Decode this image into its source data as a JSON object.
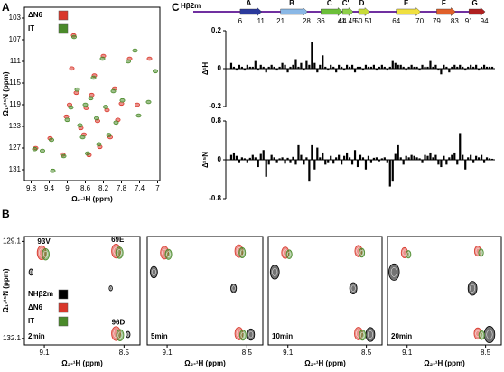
{
  "panel_labels": [
    "A",
    "B",
    "C"
  ],
  "secondary_structure": {
    "label": "Hβ2m",
    "line_color": "#7030a0",
    "strands": [
      {
        "name": "A",
        "start": 6,
        "end": 11,
        "color": "#2b3a9c"
      },
      {
        "name": "B",
        "start": 21,
        "end": 28,
        "color": "#8ab8e6"
      },
      {
        "name": "C",
        "start": 36,
        "end": 41,
        "color": "#6cbf3a"
      },
      {
        "name": "C'",
        "start": 44,
        "end": 45,
        "color": "#8fd04a"
      },
      {
        "name": "D",
        "start": 50,
        "end": 51,
        "color": "#c8dc3a"
      },
      {
        "name": "E",
        "start": 64,
        "end": 70,
        "color": "#f0e040"
      },
      {
        "name": "F",
        "start": 79,
        "end": 83,
        "color": "#e0602a"
      },
      {
        "name": "G",
        "start": 91,
        "end": 94,
        "color": "#b02020"
      }
    ]
  },
  "chart_data": [
    {
      "type": "scatter",
      "xlabel": "Ω₂-¹H (ppm)",
      "ylabel": "Ω₁-¹⁵N (ppm)",
      "legend": "upper left",
      "xlim": [
        9.95,
        6.95
      ],
      "ylim": [
        133,
        101
      ],
      "xticks": [
        9.8,
        9.4,
        9.0,
        8.6,
        8.2,
        7.8,
        7.4,
        7.0
      ],
      "yticks": [
        103,
        107,
        111,
        115,
        119,
        123,
        127,
        131
      ],
      "series": [
        {
          "name": "ΔN6",
          "color": "#d9372b",
          "x": [
            9.7,
            9.38,
            9.1,
            9.02,
            8.95,
            8.86,
            8.8,
            8.7,
            8.63,
            8.58,
            8.52,
            8.46,
            8.4,
            8.33,
            8.28,
            8.2,
            8.12,
            8.05,
            7.95,
            7.88,
            7.8,
            7.62,
            7.45,
            7.18,
            8.9
          ],
          "y": [
            127.0,
            125.2,
            128.2,
            121.2,
            119.0,
            106.2,
            116.8,
            123.3,
            124.5,
            119.6,
            128.3,
            117.2,
            113.6,
            122.0,
            126.8,
            110.0,
            120.0,
            125.0,
            116.0,
            121.8,
            118.8,
            110.5,
            119.0,
            110.5,
            112.3
          ]
        },
        {
          "name": "IT",
          "color": "#4a8a2a",
          "x": [
            9.72,
            9.35,
            9.32,
            9.08,
            9.0,
            8.92,
            8.85,
            8.78,
            8.72,
            8.66,
            8.6,
            8.55,
            8.48,
            8.42,
            8.35,
            8.3,
            8.22,
            8.15,
            8.08,
            7.98,
            7.92,
            7.78,
            7.65,
            7.5,
            7.42,
            7.2,
            7.05,
            9.55
          ],
          "y": [
            127.2,
            125.5,
            131.2,
            128.5,
            121.8,
            119.5,
            106.5,
            116.2,
            122.8,
            125.0,
            119.0,
            128.0,
            117.8,
            114.0,
            121.5,
            126.3,
            110.5,
            119.4,
            124.6,
            116.5,
            122.3,
            118.2,
            111.0,
            109.0,
            121.0,
            118.5,
            112.8,
            127.5
          ]
        }
      ]
    },
    {
      "type": "scatter",
      "title": "2min",
      "xlabel": "Ω₂-¹H (ppm)",
      "ylabel": "Ω₁-¹⁵N (ppm)",
      "legend": "left",
      "peak_labels": [
        "93V",
        "69E",
        "96D"
      ],
      "xlim": [
        9.25,
        8.38
      ],
      "ylim": [
        132.3,
        128.95
      ],
      "xticks": [
        9.1,
        8.5
      ],
      "yticks": [
        129.1,
        132.1
      ],
      "series": [
        {
          "name": "NHβ2m",
          "color": "#000000",
          "x": [
            9.2,
            8.6,
            8.47
          ],
          "y": [
            130.05,
            130.55,
            131.98
          ],
          "sizes": [
            0.5,
            0.4,
            0.5
          ]
        },
        {
          "name": "ΔN6",
          "color": "#d9372b",
          "x": [
            9.12,
            8.56,
            8.56
          ],
          "y": [
            129.45,
            129.4,
            131.95
          ],
          "sizes": [
            1.1,
            1.1,
            1.1
          ]
        },
        {
          "name": "IT",
          "color": "#4a8a2a",
          "x": [
            9.09,
            8.535,
            8.53
          ],
          "y": [
            129.5,
            129.45,
            132.0
          ],
          "sizes": [
            0.9,
            0.9,
            0.9
          ]
        }
      ]
    },
    {
      "type": "scatter",
      "title": "5min",
      "xlabel": "Ω₂-¹H (ppm)",
      "xlim": [
        9.25,
        8.38
      ],
      "ylim": [
        132.3,
        128.95
      ],
      "xticks": [
        9.1,
        8.5
      ],
      "series": [
        {
          "name": "NHβ2m",
          "color": "#000000",
          "x": [
            9.2,
            8.6,
            8.47
          ],
          "y": [
            130.05,
            130.55,
            131.98
          ],
          "sizes": [
            0.9,
            0.7,
            0.9
          ]
        },
        {
          "name": "ΔN6",
          "color": "#d9372b",
          "x": [
            9.12,
            8.56,
            8.56
          ],
          "y": [
            129.45,
            129.4,
            131.95
          ],
          "sizes": [
            1.0,
            1.0,
            1.0
          ]
        },
        {
          "name": "IT",
          "color": "#4a8a2a",
          "x": [
            9.09,
            8.535,
            8.53
          ],
          "y": [
            129.5,
            129.45,
            132.0
          ],
          "sizes": [
            0.8,
            0.8,
            0.8
          ]
        }
      ]
    },
    {
      "type": "scatter",
      "title": "10min",
      "xlabel": "Ω₂-¹H (ppm)",
      "xlim": [
        9.25,
        8.38
      ],
      "ylim": [
        132.3,
        128.95
      ],
      "xticks": [
        9.1,
        8.5
      ],
      "series": [
        {
          "name": "NHβ2m",
          "color": "#000000",
          "x": [
            9.2,
            8.6,
            8.47
          ],
          "y": [
            130.05,
            130.55,
            131.98
          ],
          "sizes": [
            1.1,
            0.9,
            1.1
          ]
        },
        {
          "name": "ΔN6",
          "color": "#d9372b",
          "x": [
            9.12,
            8.56,
            8.56
          ],
          "y": [
            129.45,
            129.4,
            131.95
          ],
          "sizes": [
            0.9,
            0.9,
            1.0
          ]
        },
        {
          "name": "IT",
          "color": "#4a8a2a",
          "x": [
            9.09,
            8.535,
            8.53
          ],
          "y": [
            129.5,
            129.45,
            132.0
          ],
          "sizes": [
            0.7,
            0.7,
            0.8
          ]
        }
      ]
    },
    {
      "type": "scatter",
      "title": "20min",
      "xlabel": "Ω₂-¹H (ppm)",
      "xlim": [
        9.25,
        8.38
      ],
      "ylim": [
        132.3,
        128.95
      ],
      "xticks": [
        9.1,
        8.5
      ],
      "series": [
        {
          "name": "NHβ2m",
          "color": "#000000",
          "x": [
            9.2,
            8.6,
            8.47
          ],
          "y": [
            130.05,
            130.55,
            131.98
          ],
          "sizes": [
            1.3,
            1.1,
            1.3
          ]
        },
        {
          "name": "ΔN6",
          "color": "#d9372b",
          "x": [
            9.12,
            8.56,
            8.56
          ],
          "y": [
            129.45,
            129.4,
            131.95
          ],
          "sizes": [
            0.8,
            0.8,
            0.9
          ]
        },
        {
          "name": "IT",
          "color": "#4a8a2a",
          "x": [
            9.09,
            8.535,
            8.53
          ],
          "y": [
            129.5,
            129.45,
            132.0
          ],
          "sizes": [
            0.6,
            0.6,
            0.7
          ]
        }
      ]
    },
    {
      "type": "bar",
      "ylabel": "Δ¹H",
      "color": "#000000",
      "xlim": [
        0,
        100
      ],
      "ylim": [
        -0.2,
        0.2
      ],
      "yticks": [
        -0.2,
        0,
        0.2
      ],
      "x": [
        1,
        2,
        3,
        4,
        5,
        6,
        7,
        8,
        9,
        10,
        11,
        12,
        13,
        14,
        15,
        16,
        17,
        18,
        19,
        20,
        21,
        22,
        23,
        24,
        25,
        26,
        27,
        28,
        29,
        30,
        31,
        32,
        33,
        34,
        35,
        36,
        37,
        38,
        39,
        40,
        41,
        42,
        43,
        44,
        45,
        46,
        47,
        48,
        49,
        50,
        51,
        52,
        53,
        54,
        55,
        56,
        57,
        58,
        59,
        60,
        61,
        62,
        63,
        64,
        65,
        66,
        67,
        68,
        69,
        70,
        71,
        72,
        73,
        74,
        75,
        76,
        77,
        78,
        79,
        80,
        81,
        82,
        83,
        84,
        85,
        86,
        87,
        88,
        89,
        90,
        91,
        92,
        93,
        94,
        95,
        96,
        97,
        98,
        99
      ],
      "values": [
        0,
        0.03,
        0.01,
        -0.01,
        0.02,
        0.01,
        -0.01,
        0.02,
        0.01,
        0.01,
        0.04,
        -0.01,
        0.02,
        0.01,
        -0.02,
        0.01,
        0.02,
        0.01,
        -0.01,
        0.01,
        0.03,
        0.02,
        -0.02,
        0.01,
        0.02,
        0.05,
        0.01,
        0.03,
        -0.01,
        0.04,
        0.02,
        0.14,
        0.03,
        -0.02,
        0.02,
        0.07,
        0.01,
        -0.01,
        0.02,
        0.01,
        -0.02,
        0.02,
        0.01,
        -0.01,
        0.02,
        0.01,
        0.02,
        -0.02,
        0.01,
        0.01,
        -0.01,
        0.02,
        0.01,
        0.01,
        0.02,
        -0.01,
        0.01,
        0.02,
        0.01,
        -0.01,
        0.01,
        0.04,
        0.03,
        0.02,
        0.02,
        0.01,
        -0.01,
        0.01,
        0.02,
        0.01,
        0.01,
        -0.01,
        0.02,
        0.01,
        0.01,
        0.04,
        0.01,
        0.02,
        -0.01,
        -0.03,
        0.02,
        0.01,
        -0.02,
        0.01,
        0.02,
        0.01,
        0.02,
        0.01,
        -0.01,
        0.01,
        0.02,
        0.01,
        0.02,
        -0.01,
        0.01,
        0.02,
        0.01,
        0.01,
        0.01
      ]
    },
    {
      "type": "bar",
      "ylabel": "Δ¹⁵N",
      "color": "#000000",
      "xlim": [
        0,
        100
      ],
      "ylim": [
        -0.8,
        0.8
      ],
      "yticks": [
        -0.8,
        0,
        0.8
      ],
      "x": [
        1,
        2,
        3,
        4,
        5,
        6,
        7,
        8,
        9,
        10,
        11,
        12,
        13,
        14,
        15,
        16,
        17,
        18,
        19,
        20,
        21,
        22,
        23,
        24,
        25,
        26,
        27,
        28,
        29,
        30,
        31,
        32,
        33,
        34,
        35,
        36,
        37,
        38,
        39,
        40,
        41,
        42,
        43,
        44,
        45,
        46,
        47,
        48,
        49,
        50,
        51,
        52,
        53,
        54,
        55,
        56,
        57,
        58,
        59,
        60,
        61,
        62,
        63,
        64,
        65,
        66,
        67,
        68,
        69,
        70,
        71,
        72,
        73,
        74,
        75,
        76,
        77,
        78,
        79,
        80,
        81,
        82,
        83,
        84,
        85,
        86,
        87,
        88,
        89,
        90,
        91,
        92,
        93,
        94,
        95,
        96,
        97,
        98,
        99
      ],
      "values": [
        0,
        0.1,
        0.15,
        0.08,
        -0.05,
        0.05,
        0.03,
        -0.05,
        0.04,
        0.1,
        0.05,
        -0.15,
        0.12,
        0.2,
        -0.35,
        -0.1,
        0.1,
        0.05,
        -0.05,
        0.03,
        0.05,
        -0.08,
        0.04,
        -0.05,
        0.06,
        -0.1,
        0.3,
        0.1,
        -0.1,
        0.05,
        -0.45,
        0.3,
        -0.2,
        0.25,
        0.05,
        0.15,
        -0.1,
        -0.05,
        0.08,
        -0.08,
        0.05,
        0.1,
        -0.1,
        0.08,
        0.15,
        0.05,
        -0.1,
        0.2,
        -0.15,
        0.1,
        0.05,
        -0.2,
        0.08,
        -0.05,
        0.04,
        0.05,
        -0.03,
        0.03,
        0.05,
        -0.05,
        -0.55,
        -0.45,
        0.12,
        0.3,
        0.05,
        -0.1,
        0.08,
        0.05,
        0.1,
        0.08,
        0.05,
        0.03,
        -0.05,
        0.1,
        0.08,
        0.15,
        0.05,
        0.1,
        -0.1,
        -0.15,
        0.08,
        -0.1,
        0.05,
        0.1,
        0.15,
        -0.1,
        0.55,
        0.1,
        -0.2,
        0.05,
        0.1,
        -0.05,
        0.08,
        0.05,
        0.1,
        -0.05,
        0.05,
        0.03,
        0.02
      ]
    }
  ]
}
